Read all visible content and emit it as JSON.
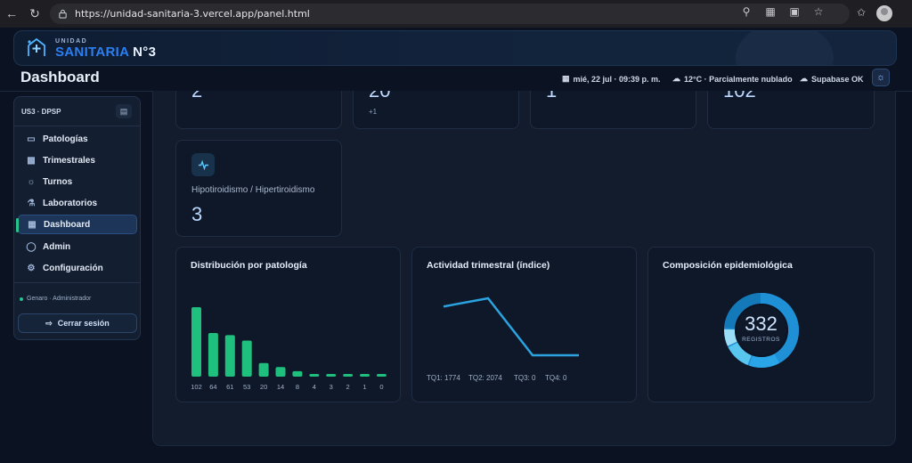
{
  "browser": {
    "url": "https://unidad-sanitaria-3.vercel.app/panel.html"
  },
  "brand": {
    "small": "UNIDAD",
    "name": "SANITARIA",
    "number": "N°3"
  },
  "header": {
    "title": "Dashboard",
    "datetime": "mié, 22 jul · 09:39 p. m.",
    "weather": "12°C · Parcialmente nublado",
    "db_status": "Supabase OK"
  },
  "sidebar": {
    "org": "US3 · DPSP",
    "items": [
      {
        "label": "Patologías",
        "icon": "monitor-icon"
      },
      {
        "label": "Trimestrales",
        "icon": "bar-chart-icon"
      },
      {
        "label": "Turnos",
        "icon": "sun-icon"
      },
      {
        "label": "Laboratorios",
        "icon": "flask-icon"
      },
      {
        "label": "Dashboard",
        "icon": "grid-icon"
      },
      {
        "label": "Admin",
        "icon": "shield-icon"
      },
      {
        "label": "Configuración",
        "icon": "gear-icon"
      }
    ],
    "active": "Dashboard",
    "user": "Genaro · Administrador",
    "logout": "Cerrar sesión"
  },
  "stats_top": [
    {
      "value": "2",
      "sub": ""
    },
    {
      "value": "20",
      "sub": "+1"
    },
    {
      "value": "1",
      "sub": ""
    },
    {
      "value": "102",
      "sub": ""
    }
  ],
  "kpi": {
    "label": "Hipotiroidismo / Hipertiroidismo",
    "value": "3",
    "icon": "activity-icon"
  },
  "charts": {
    "patologia_title": "Distribución por patología",
    "trimestral_title": "Actividad trimestral (índice)",
    "composicion_title": "Composición epidemiológica",
    "donut_total": "332",
    "donut_label": "REGISTROS"
  },
  "chart_data": [
    {
      "type": "bar",
      "title": "Distribución por patología",
      "values": [
        102,
        64,
        61,
        53,
        20,
        14,
        8,
        4,
        3,
        2,
        1,
        0
      ],
      "color": "#1fbf7e"
    },
    {
      "type": "line",
      "title": "Actividad trimestral (índice)",
      "categories": [
        "TQ1",
        "TQ2",
        "TQ3",
        "TQ4"
      ],
      "values": [
        1774,
        2074,
        0,
        0
      ],
      "labels": [
        "TQ1: 1774",
        "TQ2: 2074",
        "TQ3: 0",
        "TQ4: 0"
      ],
      "color": "#2aa3e0"
    },
    {
      "type": "pie",
      "title": "Composición epidemiológica",
      "total": 332,
      "segments_color": [
        "#1f8fd6",
        "#2aa6e8",
        "#59c6f0",
        "#9bdcf6",
        "#1479b8"
      ]
    }
  ],
  "colors": {
    "accent": "#2b7ff0",
    "success": "#24c48a",
    "bar": "#1fbf7e",
    "line": "#2aa3e0"
  }
}
